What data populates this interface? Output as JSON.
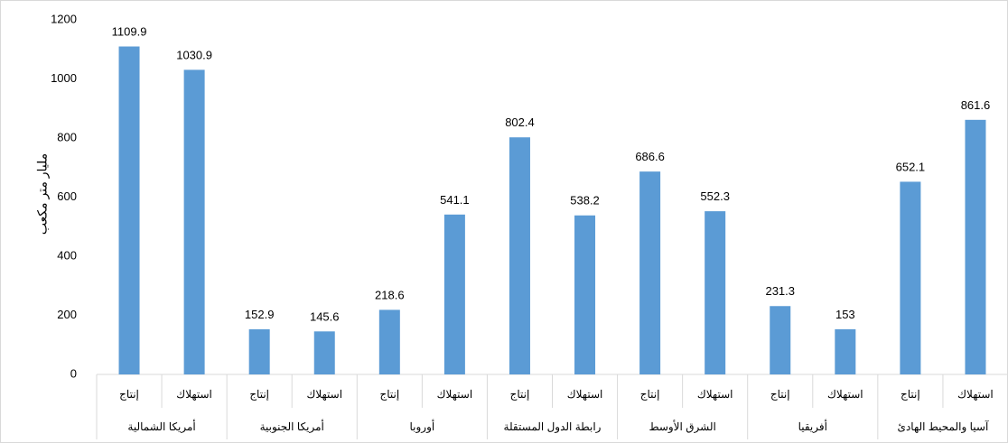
{
  "chart_data": {
    "type": "bar",
    "title": "",
    "ylabel": "مليار متر مكعب",
    "xlabel": "",
    "ylim": [
      0,
      1200
    ],
    "yticks": [
      0,
      200,
      400,
      600,
      800,
      1000,
      1200
    ],
    "grid": false,
    "bar_color": "#5b9bd5",
    "groups": [
      {
        "label": "أمريكا الشمالية",
        "categories": [
          "إنتاج",
          "استهلاك"
        ],
        "values": [
          1109.9,
          1030.9
        ],
        "value_labels": [
          "1109.9",
          "1030.9"
        ]
      },
      {
        "label": "أمريكا الجنوبية",
        "categories": [
          "إنتاج",
          "استهلاك"
        ],
        "values": [
          152.9,
          145.6
        ],
        "value_labels": [
          "152.9",
          "145.6"
        ]
      },
      {
        "label": "أوروبا",
        "categories": [
          "إنتاج",
          "استهلاك"
        ],
        "values": [
          218.6,
          541.1
        ],
        "value_labels": [
          "218.6",
          "541.1"
        ]
      },
      {
        "label": "رابطة الدول المستقلة",
        "categories": [
          "إنتاج",
          "استهلاك"
        ],
        "values": [
          802.4,
          538.2
        ],
        "value_labels": [
          "802.4",
          "538.2"
        ]
      },
      {
        "label": "الشرق الأوسط",
        "categories": [
          "إنتاج",
          "استهلاك"
        ],
        "values": [
          686.6,
          552.3
        ],
        "value_labels": [
          "686.6",
          "552.3"
        ]
      },
      {
        "label": "أفريقيا",
        "categories": [
          "إنتاج",
          "استهلاك"
        ],
        "values": [
          231.3,
          153
        ],
        "value_labels": [
          "231.3",
          "153"
        ]
      },
      {
        "label": "آسيا والمحيط الهادئ",
        "categories": [
          "إنتاج",
          "استهلاك"
        ],
        "values": [
          652.1,
          861.6
        ],
        "value_labels": [
          "652.1",
          "861.6"
        ]
      }
    ]
  }
}
